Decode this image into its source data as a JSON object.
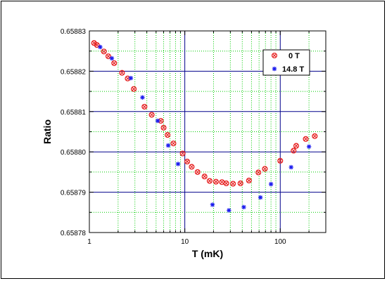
{
  "chart_data": {
    "type": "scatter",
    "title": "",
    "xlabel": "T (mK)",
    "ylabel": "Ratio",
    "x_scale": "log",
    "xlim": [
      1,
      300
    ],
    "ylim": [
      0.65878,
      0.65883
    ],
    "x_ticks": [
      {
        "value": 1,
        "label": "1"
      },
      {
        "value": 10,
        "label": "10"
      },
      {
        "value": 100,
        "label": "100"
      }
    ],
    "y_ticks": [
      {
        "value": 0.65878,
        "label": "0.65878"
      },
      {
        "value": 0.65879,
        "label": "0.65879"
      },
      {
        "value": 0.6588,
        "label": "0.65880"
      },
      {
        "value": 0.65881,
        "label": "0.65881"
      },
      {
        "value": 0.65882,
        "label": "0.65882"
      },
      {
        "value": 0.65883,
        "label": "0.65883"
      }
    ],
    "grid": {
      "major": true,
      "minor": true,
      "major_color": "#00008b",
      "minor_color": "#00cc00"
    },
    "legend_position": "top-right",
    "series": [
      {
        "name": "0 T",
        "marker": "circle-x",
        "color": "#e62020",
        "points": [
          [
            1.12,
            0.658827
          ],
          [
            1.2,
            0.6588265
          ],
          [
            1.42,
            0.6588249
          ],
          [
            1.58,
            0.6588237
          ],
          [
            1.82,
            0.658822
          ],
          [
            2.2,
            0.6588196
          ],
          [
            2.52,
            0.6588182
          ],
          [
            2.92,
            0.6588156
          ],
          [
            3.78,
            0.6588112
          ],
          [
            4.5,
            0.6588092
          ],
          [
            5.6,
            0.6588077
          ],
          [
            6.0,
            0.658806
          ],
          [
            6.6,
            0.6588042
          ],
          [
            7.6,
            0.6588021
          ],
          [
            9.5,
            0.6587996
          ],
          [
            10.6,
            0.6587976
          ],
          [
            11.8,
            0.6587963
          ],
          [
            13.6,
            0.658795
          ],
          [
            16.1,
            0.6587939
          ],
          [
            18.2,
            0.6587928
          ],
          [
            21.2,
            0.6587926
          ],
          [
            24.5,
            0.6587925
          ],
          [
            27.2,
            0.6587922
          ],
          [
            32.0,
            0.6587921
          ],
          [
            38.3,
            0.6587922
          ],
          [
            47.0,
            0.6587929
          ],
          [
            59.0,
            0.6587949
          ],
          [
            69.0,
            0.6587958
          ],
          [
            100.0,
            0.6587978
          ],
          [
            138.0,
            0.6588003
          ],
          [
            147.0,
            0.6588015
          ],
          [
            185.0,
            0.6588032
          ],
          [
            230.0,
            0.6588039
          ]
        ]
      },
      {
        "name": "14.8 T",
        "marker": "asterisk",
        "color": "#1a1aee",
        "points": [
          [
            1.3,
            0.658826
          ],
          [
            1.72,
            0.6588232
          ],
          [
            2.72,
            0.6588183
          ],
          [
            3.6,
            0.6588135
          ],
          [
            5.2,
            0.6588077
          ],
          [
            6.7,
            0.6588016
          ],
          [
            8.5,
            0.658797
          ],
          [
            19.5,
            0.6587869
          ],
          [
            29.0,
            0.6587855
          ],
          [
            41.5,
            0.6587863
          ],
          [
            62.0,
            0.6587887
          ],
          [
            80.0,
            0.658792
          ],
          [
            130.0,
            0.6587962
          ],
          [
            200.0,
            0.6588013
          ]
        ]
      }
    ]
  }
}
